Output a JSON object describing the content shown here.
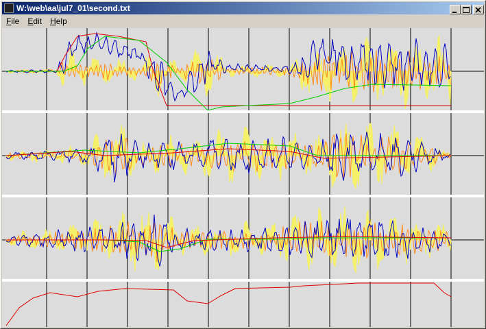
{
  "window": {
    "title": "W:\\web\\aa\\jul7_01\\second.txt"
  },
  "menu": [
    "File",
    "Edit",
    "Help"
  ]
}
